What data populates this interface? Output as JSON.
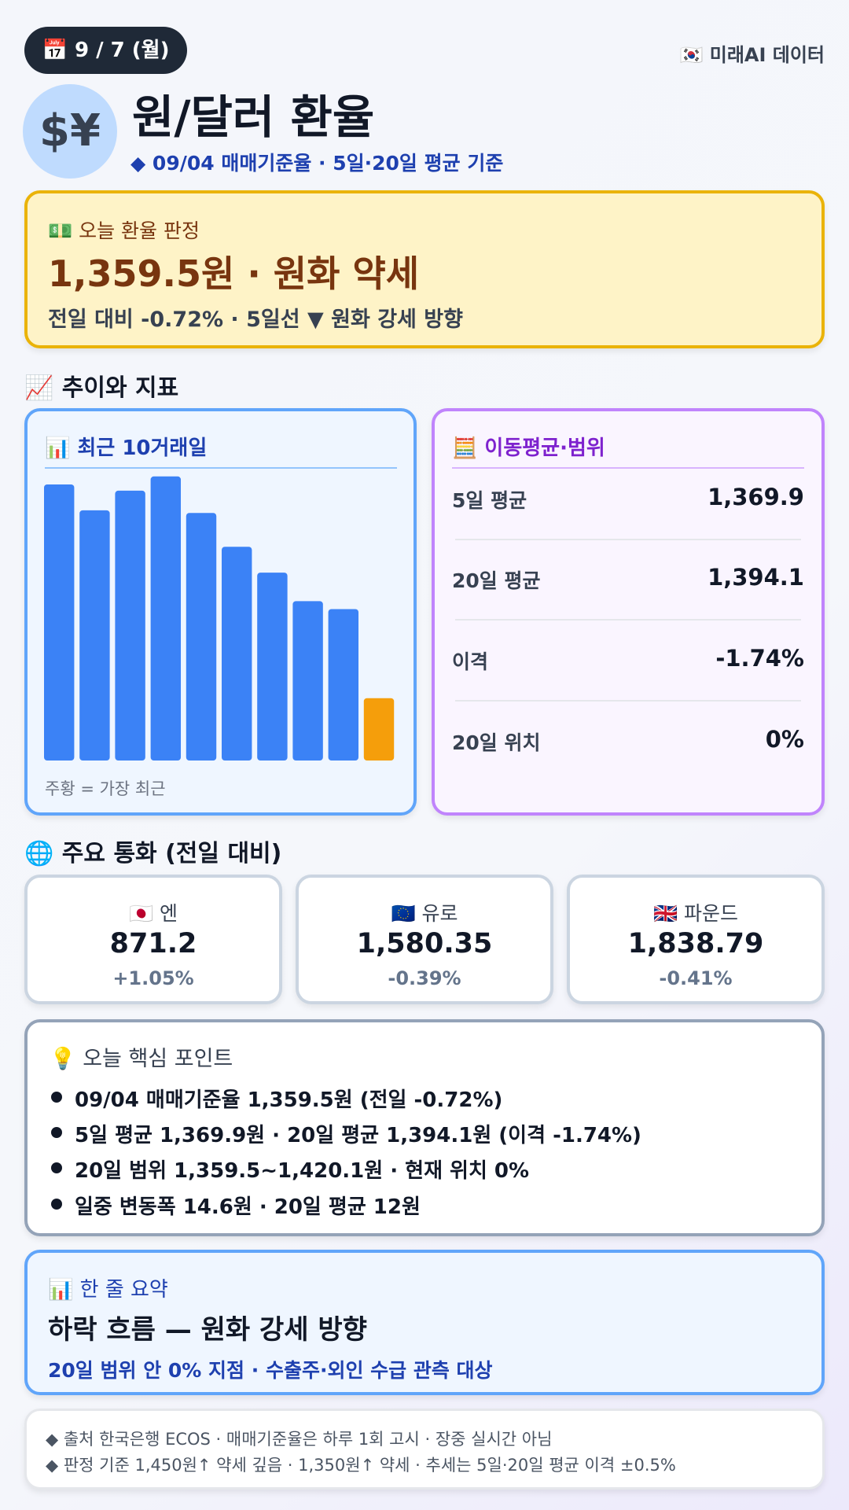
{
  "header": {
    "date": "📅 9 / 7 (월)",
    "brand": "🇰🇷 미래AI 데이터",
    "title": "원/달러 환율",
    "subtitle": "◆ 09/04 매매기준율 · 5일·20일 평균 기준"
  },
  "verdict": {
    "label": "💵 오늘 환율 판정",
    "headline": "1,359.5원 · 원화 약세",
    "detail": "전일 대비 -0.72% · 5일선 ▼ 원화 강세 방향"
  },
  "trend_section": {
    "title": "📈 추이와 지표"
  },
  "chart_data": {
    "type": "bar",
    "title": "📊 최근 10거래일",
    "values": [
      1383.5,
      1380.6,
      1382.8,
      1384.4,
      1380.3,
      1376.5,
      1373.6,
      1370.4,
      1369.5,
      1359.5
    ],
    "colors": [
      "#3b82f6",
      "#3b82f6",
      "#3b82f6",
      "#3b82f6",
      "#3b82f6",
      "#3b82f6",
      "#3b82f6",
      "#3b82f6",
      "#3b82f6",
      "#f59e0b"
    ],
    "ylim": [
      1352.5,
      1385
    ],
    "note": "주황 = 가장 최근"
  },
  "moving_average": {
    "title": "🧮 이동평균·범위",
    "rows": [
      [
        "5일 평균",
        "1,369.9"
      ],
      [
        "20일 평균",
        "1,394.1"
      ],
      [
        "이격",
        "-1.74%"
      ],
      [
        "20일 위치",
        "0%"
      ]
    ]
  },
  "currency_section": {
    "title": "🌐 주요 통화 (전일 대비)"
  },
  "currencies": [
    {
      "name": "🇯🇵 엔",
      "value": "871.2",
      "change": "+1.05%"
    },
    {
      "name": "🇪🇺 유로",
      "value": "1,580.35",
      "change": "-0.39%"
    },
    {
      "name": "🇬🇧 파운드",
      "value": "1,838.79",
      "change": "-0.41%"
    }
  ],
  "key_points": {
    "title": "💡 오늘 핵심 포인트",
    "items": [
      "09/04 매매기준율 1,359.5원 (전일 -0.72%)",
      "5일 평균 1,369.9원 · 20일 평균 1,394.1원 (이격 -1.74%)",
      "20일 범위 1,359.5~1,420.1원 · 현재 위치 0%",
      "일중 변동폭 14.6원 · 20일 평균 12원"
    ]
  },
  "summary": {
    "label": "📊 한 줄 요약",
    "headline": "하락 흐름 — 원화 강세 방향",
    "detail": "20일 범위 안 0% 지점 · 수출주·외인 수급 관측 대상"
  },
  "footer": {
    "lines": [
      "◆ 출처 한국은행 ECOS · 매매기준율은 하루 1회 고시 · 장중 실시간 아님",
      "◆ 판정 기준 1,450원↑ 약세 깊음 · 1,350원↑ 약세 · 추세는 5일·20일 평균 이격 ±0.5%"
    ]
  }
}
